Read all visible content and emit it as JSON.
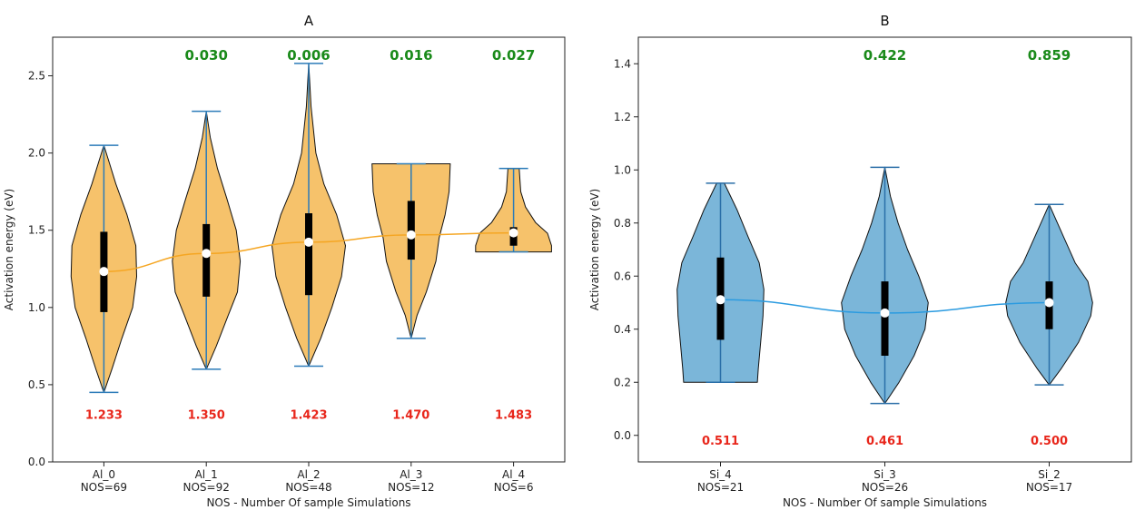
{
  "chart_data": [
    {
      "type": "violin",
      "title": "A",
      "xlabel": "NOS - Number Of sample Simulations",
      "ylabel": "Activation energy (eV)",
      "ylim": [
        0,
        2.75
      ],
      "yticks": [
        0.0,
        0.5,
        1.0,
        1.5,
        2.0,
        2.5
      ],
      "ytick_labels": [
        "0.0",
        "0.5",
        "1.0",
        "1.5",
        "2.0",
        "2.5"
      ],
      "fill_color": "#f6c26b",
      "line_color": "#f5a623",
      "whisker_color": "#2b7bb9",
      "pval_color": "#1a8a1a",
      "mean_label_color": "#e8261b",
      "categories": [
        {
          "name": "Al_0",
          "nos": "NOS=69",
          "min": 0.45,
          "max": 2.05,
          "q1": 0.97,
          "q3": 1.49,
          "mean": 1.233,
          "mean_label": "1.233",
          "pvalue": "",
          "shape": [
            [
              0.45,
              0.0
            ],
            [
              0.6,
              0.2
            ],
            [
              0.8,
              0.45
            ],
            [
              1.0,
              0.72
            ],
            [
              1.2,
              0.82
            ],
            [
              1.4,
              0.8
            ],
            [
              1.6,
              0.58
            ],
            [
              1.8,
              0.3
            ],
            [
              1.95,
              0.12
            ],
            [
              2.05,
              0.0
            ]
          ]
        },
        {
          "name": "Al_1",
          "nos": "NOS=92",
          "min": 0.6,
          "max": 2.27,
          "q1": 1.07,
          "q3": 1.54,
          "mean": 1.35,
          "mean_label": "1.350",
          "pvalue": "0.030",
          "shape": [
            [
              0.6,
              0.0
            ],
            [
              0.75,
              0.25
            ],
            [
              0.95,
              0.55
            ],
            [
              1.1,
              0.78
            ],
            [
              1.3,
              0.85
            ],
            [
              1.5,
              0.75
            ],
            [
              1.7,
              0.52
            ],
            [
              1.9,
              0.28
            ],
            [
              2.1,
              0.1
            ],
            [
              2.27,
              0.0
            ]
          ]
        },
        {
          "name": "Al_2",
          "nos": "NOS=48",
          "min": 0.62,
          "max": 2.58,
          "q1": 1.08,
          "q3": 1.61,
          "mean": 1.423,
          "mean_label": "1.423",
          "pvalue": "0.006",
          "shape": [
            [
              0.62,
              0.0
            ],
            [
              0.8,
              0.3
            ],
            [
              1.0,
              0.58
            ],
            [
              1.2,
              0.82
            ],
            [
              1.4,
              0.92
            ],
            [
              1.6,
              0.7
            ],
            [
              1.8,
              0.38
            ],
            [
              2.0,
              0.18
            ],
            [
              2.3,
              0.06
            ],
            [
              2.58,
              0.0
            ]
          ]
        },
        {
          "name": "Al_3",
          "nos": "NOS=12",
          "min": 0.8,
          "max": 1.93,
          "q1": 1.31,
          "q3": 1.69,
          "mean": 1.47,
          "mean_label": "1.470",
          "pvalue": "0.016",
          "shape": [
            [
              0.8,
              0.0
            ],
            [
              0.95,
              0.15
            ],
            [
              1.1,
              0.38
            ],
            [
              1.3,
              0.62
            ],
            [
              1.45,
              0.7
            ],
            [
              1.6,
              0.85
            ],
            [
              1.75,
              0.95
            ],
            [
              1.93,
              0.98
            ]
          ]
        },
        {
          "name": "Al_4",
          "nos": "NOS=6",
          "min": 1.36,
          "max": 1.9,
          "q1": 1.4,
          "q3": 1.52,
          "mean": 1.483,
          "mean_label": "1.483",
          "pvalue": "0.027",
          "shape": [
            [
              1.36,
              0.95
            ],
            [
              1.4,
              0.95
            ],
            [
              1.48,
              0.85
            ],
            [
              1.55,
              0.55
            ],
            [
              1.65,
              0.3
            ],
            [
              1.75,
              0.18
            ],
            [
              1.9,
              0.14
            ]
          ]
        }
      ]
    },
    {
      "type": "violin",
      "title": "B",
      "xlabel": "NOS - Number Of sample Simulations",
      "ylabel": "Activation energy (eV)",
      "ylim": [
        -0.1,
        1.5
      ],
      "yticks": [
        0.0,
        0.2,
        0.4,
        0.6,
        0.8,
        1.0,
        1.2,
        1.4
      ],
      "ytick_labels": [
        "0.0",
        "0.2",
        "0.4",
        "0.6",
        "0.8",
        "1.0",
        "1.2",
        "1.4"
      ],
      "fill_color": "#7bb6d9",
      "line_color": "#2b9be0",
      "whisker_color": "#2b6fa8",
      "pval_color": "#1a8a1a",
      "mean_label_color": "#e8261b",
      "categories": [
        {
          "name": "Si_4",
          "nos": "NOS=21",
          "min": 0.2,
          "max": 0.95,
          "q1": 0.36,
          "q3": 0.67,
          "mean": 0.511,
          "mean_label": "0.511",
          "pvalue": "",
          "shape": [
            [
              0.2,
              0.78
            ],
            [
              0.25,
              0.8
            ],
            [
              0.35,
              0.85
            ],
            [
              0.45,
              0.9
            ],
            [
              0.55,
              0.92
            ],
            [
              0.65,
              0.82
            ],
            [
              0.75,
              0.58
            ],
            [
              0.85,
              0.35
            ],
            [
              0.95,
              0.08
            ]
          ]
        },
        {
          "name": "Si_3",
          "nos": "NOS=26",
          "min": 0.12,
          "max": 1.01,
          "q1": 0.3,
          "q3": 0.58,
          "mean": 0.461,
          "mean_label": "0.461",
          "pvalue": "0.422",
          "shape": [
            [
              0.12,
              0.0
            ],
            [
              0.2,
              0.3
            ],
            [
              0.3,
              0.62
            ],
            [
              0.4,
              0.85
            ],
            [
              0.5,
              0.92
            ],
            [
              0.6,
              0.72
            ],
            [
              0.7,
              0.48
            ],
            [
              0.8,
              0.28
            ],
            [
              0.9,
              0.12
            ],
            [
              1.01,
              0.0
            ]
          ]
        },
        {
          "name": "Si_2",
          "nos": "NOS=17",
          "min": 0.19,
          "max": 0.87,
          "q1": 0.4,
          "q3": 0.58,
          "mean": 0.5,
          "mean_label": "0.500",
          "pvalue": "0.859",
          "shape": [
            [
              0.19,
              0.0
            ],
            [
              0.25,
              0.25
            ],
            [
              0.35,
              0.62
            ],
            [
              0.45,
              0.88
            ],
            [
              0.5,
              0.92
            ],
            [
              0.58,
              0.82
            ],
            [
              0.65,
              0.55
            ],
            [
              0.75,
              0.3
            ],
            [
              0.87,
              0.0
            ]
          ]
        }
      ]
    }
  ]
}
